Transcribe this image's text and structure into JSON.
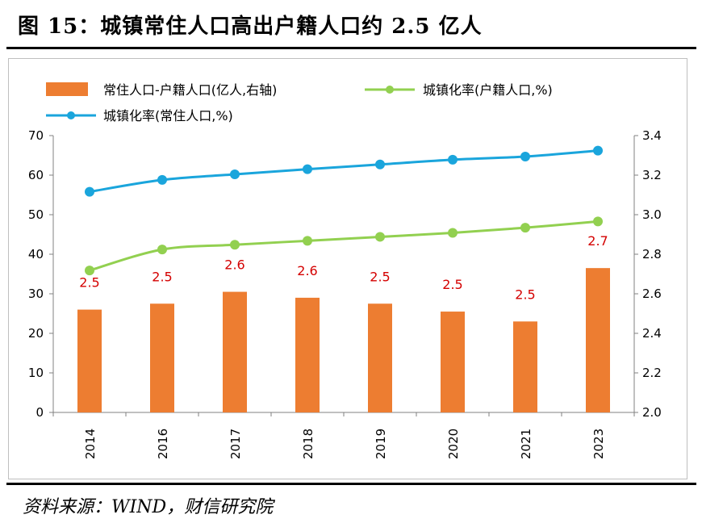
{
  "figure": {
    "title": "图 15：城镇常住人口高出户籍人口约 2.5 亿人",
    "source": "资料来源：WIND，财信研究院"
  },
  "colors": {
    "bar": "#ed7d31",
    "urban_resident_line": "#1aa5dc",
    "urban_hukou_line": "#92d050",
    "data_label": "#d40000",
    "axis": "#808080"
  },
  "chart_data": {
    "type": "bar",
    "categories": [
      "2014",
      "2016",
      "2017",
      "2018",
      "2019",
      "2020",
      "2021",
      "2023"
    ],
    "series": [
      {
        "name": "常住人口-户籍人口(亿人,右轴)",
        "type": "bar",
        "axis": "right",
        "values": [
          2.52,
          2.55,
          2.61,
          2.58,
          2.55,
          2.51,
          2.46,
          2.73
        ],
        "data_labels": [
          "2.5",
          "2.5",
          "2.6",
          "2.6",
          "2.5",
          "2.5",
          "2.5",
          "2.7"
        ]
      },
      {
        "name": "城镇化率(户籍人口,%)",
        "type": "line",
        "axis": "left",
        "values": [
          35.9,
          41.2,
          42.4,
          43.4,
          44.4,
          45.4,
          46.7,
          48.3
        ]
      },
      {
        "name": "城镇化率(常住人口,%)",
        "type": "line",
        "axis": "left",
        "values": [
          55.8,
          58.8,
          60.2,
          61.5,
          62.7,
          63.9,
          64.7,
          66.2
        ]
      }
    ],
    "y_left": {
      "min": 0,
      "max": 70,
      "ticks": [
        "0",
        "10",
        "20",
        "30",
        "40",
        "50",
        "60",
        "70"
      ]
    },
    "y_right": {
      "min": 2.0,
      "max": 3.4,
      "ticks": [
        "2.0",
        "2.2",
        "2.4",
        "2.6",
        "2.8",
        "3.0",
        "3.2",
        "3.4"
      ]
    },
    "legend_position": "top-left",
    "grid": false
  }
}
